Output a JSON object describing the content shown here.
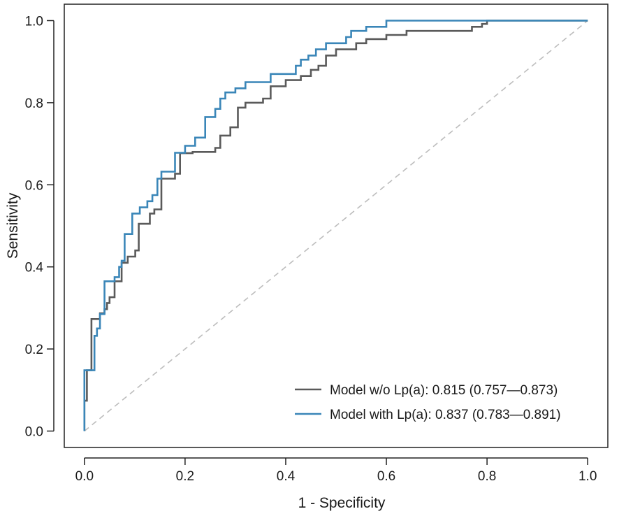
{
  "chart_data": {
    "type": "line",
    "title": "",
    "xlabel": "1 - Specificity",
    "ylabel": "Sensitivity",
    "xlim": [
      -0.04,
      1.04
    ],
    "ylim": [
      -0.04,
      1.04
    ],
    "x_ticks": [
      0.0,
      0.2,
      0.4,
      0.6,
      0.8,
      1.0
    ],
    "x_tick_labels": [
      "0.0",
      "0.2",
      "0.4",
      "0.6",
      "0.8",
      "1.0"
    ],
    "y_ticks": [
      0.0,
      0.2,
      0.4,
      0.6,
      0.8,
      1.0
    ],
    "y_tick_labels": [
      "0.0",
      "0.2",
      "0.4",
      "0.6",
      "0.8",
      "1.0"
    ],
    "grid": false,
    "legend_position": "bottom-right",
    "reference_line": {
      "name": "Chance",
      "x": [
        0,
        1
      ],
      "y": [
        0,
        1
      ],
      "color": "#bdbdbd",
      "dashed": true
    },
    "series": [
      {
        "name": "Model w/o Lp(a)",
        "legend_label": "Model w/o Lp(a): 0.815 (0.757—0.873)",
        "auc": 0.815,
        "ci_low": 0.757,
        "ci_high": 0.873,
        "color": "#5a5a5a",
        "x": [
          0.0,
          0.0,
          0.005,
          0.005,
          0.014,
          0.014,
          0.031,
          0.031,
          0.04,
          0.04,
          0.045,
          0.045,
          0.05,
          0.05,
          0.06,
          0.06,
          0.074,
          0.074,
          0.086,
          0.086,
          0.101,
          0.101,
          0.108,
          0.108,
          0.13,
          0.13,
          0.139,
          0.139,
          0.153,
          0.153,
          0.18,
          0.18,
          0.19,
          0.19,
          0.215,
          0.215,
          0.26,
          0.26,
          0.27,
          0.27,
          0.29,
          0.29,
          0.305,
          0.305,
          0.32,
          0.32,
          0.355,
          0.355,
          0.37,
          0.37,
          0.4,
          0.4,
          0.43,
          0.43,
          0.45,
          0.45,
          0.465,
          0.465,
          0.48,
          0.48,
          0.5,
          0.5,
          0.54,
          0.54,
          0.56,
          0.56,
          0.6,
          0.6,
          0.64,
          0.64,
          0.77,
          0.77,
          0.79,
          0.79,
          0.8,
          0.8,
          1.0
        ],
        "y": [
          0.0,
          0.074,
          0.074,
          0.148,
          0.148,
          0.273,
          0.273,
          0.287,
          0.287,
          0.297,
          0.297,
          0.312,
          0.312,
          0.326,
          0.326,
          0.365,
          0.365,
          0.41,
          0.41,
          0.425,
          0.425,
          0.44,
          0.44,
          0.505,
          0.505,
          0.53,
          0.53,
          0.54,
          0.54,
          0.615,
          0.615,
          0.627,
          0.627,
          0.677,
          0.677,
          0.68,
          0.68,
          0.69,
          0.69,
          0.72,
          0.72,
          0.74,
          0.74,
          0.788,
          0.788,
          0.8,
          0.8,
          0.81,
          0.81,
          0.84,
          0.84,
          0.855,
          0.855,
          0.865,
          0.865,
          0.88,
          0.88,
          0.89,
          0.89,
          0.915,
          0.915,
          0.93,
          0.93,
          0.945,
          0.945,
          0.955,
          0.955,
          0.965,
          0.965,
          0.975,
          0.975,
          0.985,
          0.985,
          0.992,
          0.992,
          1.0,
          1.0
        ]
      },
      {
        "name": "Model with Lp(a)",
        "legend_label": "Model with Lp(a): 0.837 (0.783—0.891)",
        "auc": 0.837,
        "ci_low": 0.783,
        "ci_high": 0.891,
        "color": "#3a86b8",
        "x": [
          0.0,
          0.0,
          0.02,
          0.02,
          0.025,
          0.025,
          0.031,
          0.031,
          0.04,
          0.04,
          0.06,
          0.06,
          0.069,
          0.069,
          0.074,
          0.074,
          0.08,
          0.08,
          0.095,
          0.095,
          0.11,
          0.11,
          0.125,
          0.125,
          0.135,
          0.135,
          0.145,
          0.145,
          0.153,
          0.153,
          0.18,
          0.18,
          0.2,
          0.2,
          0.22,
          0.22,
          0.24,
          0.24,
          0.26,
          0.26,
          0.27,
          0.27,
          0.28,
          0.28,
          0.3,
          0.3,
          0.32,
          0.32,
          0.37,
          0.37,
          0.42,
          0.42,
          0.43,
          0.43,
          0.445,
          0.445,
          0.46,
          0.46,
          0.48,
          0.48,
          0.52,
          0.52,
          0.53,
          0.53,
          0.56,
          0.56,
          0.6,
          0.6,
          0.65,
          0.65,
          1.0
        ],
        "y": [
          0.0,
          0.148,
          0.148,
          0.232,
          0.232,
          0.25,
          0.25,
          0.285,
          0.285,
          0.365,
          0.365,
          0.375,
          0.375,
          0.4,
          0.4,
          0.415,
          0.415,
          0.48,
          0.48,
          0.53,
          0.53,
          0.545,
          0.545,
          0.56,
          0.56,
          0.575,
          0.575,
          0.615,
          0.615,
          0.632,
          0.632,
          0.678,
          0.678,
          0.695,
          0.695,
          0.715,
          0.715,
          0.765,
          0.765,
          0.785,
          0.785,
          0.81,
          0.81,
          0.825,
          0.825,
          0.835,
          0.835,
          0.85,
          0.85,
          0.87,
          0.87,
          0.89,
          0.89,
          0.905,
          0.905,
          0.915,
          0.915,
          0.93,
          0.93,
          0.945,
          0.945,
          0.96,
          0.96,
          0.975,
          0.975,
          0.985,
          0.985,
          1.0,
          1.0,
          1.0,
          1.0
        ]
      }
    ]
  }
}
